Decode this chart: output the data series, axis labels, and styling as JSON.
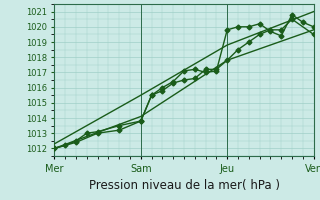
{
  "background_color": "#cceae6",
  "grid_color": "#a0cfc8",
  "line_color": "#1a5c1a",
  "marker": "D",
  "markersize": 2.5,
  "linewidth": 1.0,
  "xlim": [
    0,
    72
  ],
  "ylim": [
    1011.5,
    1021.5
  ],
  "yticks": [
    1012,
    1013,
    1014,
    1015,
    1016,
    1017,
    1018,
    1019,
    1020,
    1021
  ],
  "xtick_positions": [
    0,
    24,
    48,
    72
  ],
  "xtick_labels": [
    "Mer",
    "Sam",
    "Jeu",
    "Ven"
  ],
  "xlabel": "Pression niveau de la mer( hPa )",
  "xlabel_fontsize": 8.5,
  "ytick_fontsize": 6,
  "xtick_fontsize": 7,
  "vline_positions": [
    24,
    48,
    72
  ],
  "series1_x": [
    0,
    3,
    6,
    9,
    12,
    18,
    24,
    27,
    30,
    33,
    36,
    39,
    42,
    45,
    48,
    51,
    54,
    57,
    60,
    63,
    66,
    69,
    72
  ],
  "series1_y": [
    1012.0,
    1012.2,
    1012.5,
    1013.0,
    1013.1,
    1013.5,
    1013.8,
    1015.5,
    1016.0,
    1016.4,
    1017.1,
    1017.2,
    1017.0,
    1017.1,
    1019.8,
    1020.0,
    1020.0,
    1020.2,
    1019.7,
    1019.4,
    1020.8,
    1020.3,
    1020.0
  ],
  "series2_x": [
    0,
    6,
    12,
    18,
    24,
    27,
    30,
    33,
    36,
    39,
    42,
    45,
    48,
    51,
    54,
    57,
    60,
    63,
    66,
    72
  ],
  "series2_y": [
    1012.0,
    1012.4,
    1013.0,
    1013.2,
    1013.8,
    1015.5,
    1015.8,
    1016.3,
    1016.5,
    1016.6,
    1017.2,
    1017.2,
    1017.8,
    1018.5,
    1019.0,
    1019.5,
    1019.8,
    1019.8,
    1020.5,
    1019.5
  ],
  "series3_x": [
    0,
    24,
    48,
    72
  ],
  "series3_y": [
    1012.0,
    1014.1,
    1017.8,
    1019.8
  ],
  "series4_x": [
    0,
    24,
    48,
    72
  ],
  "series4_y": [
    1012.3,
    1015.5,
    1018.8,
    1021.0
  ]
}
